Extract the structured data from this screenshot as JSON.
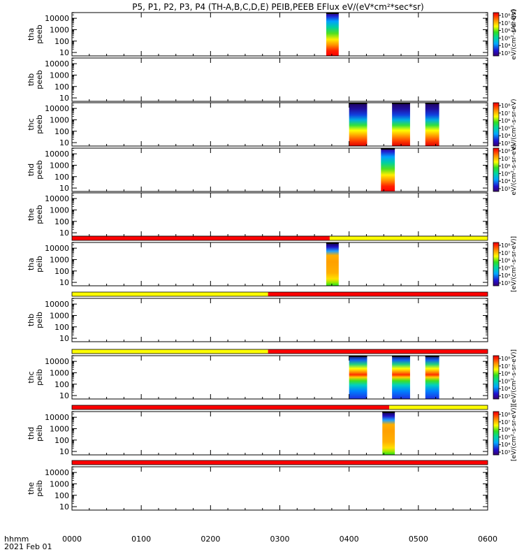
{
  "chart_data": {
    "type": "heatmap",
    "title": "P5, P1, P2, P3, P4 (TH-A,B,C,D,E) PEIB,PEEB EFlux eV/(eV*cm²*sec*sr)",
    "x_ticks": [
      "0000",
      "0100",
      "0200",
      "0300",
      "0400",
      "0500",
      "0600"
    ],
    "x_range_hours": [
      0,
      6
    ],
    "x_corner_label": "hhmm",
    "date_label": "2021 Feb 01",
    "y_ticks": [
      "10",
      "100",
      "1000",
      "10000"
    ],
    "y_scale": "log",
    "colorbar_ticks": [
      "10³",
      "10⁴",
      "10⁵",
      "10⁶",
      "10⁷",
      "10⁸"
    ],
    "colorbar_label_electrons": "eV/(cm²-s-sr-eV)",
    "colorbar_label_ions": "[eV/(cm²-s-sr-eV)]",
    "colorbar_side_text": "(All Qs)",
    "panels": [
      {
        "label1": "tha",
        "label2": "peeb",
        "colorbar": true,
        "segments": [
          [
            3.67,
            3.85
          ]
        ],
        "style": "e_tall",
        "mode_bar": null
      },
      {
        "label1": "thb",
        "label2": "peeb",
        "colorbar": false,
        "segments": [],
        "style": "",
        "mode_bar": null
      },
      {
        "label1": "thc",
        "label2": "peeb",
        "colorbar": true,
        "segments": [
          [
            4.0,
            4.26
          ],
          [
            4.62,
            4.88
          ],
          [
            5.1,
            5.3
          ]
        ],
        "style": "e_mid",
        "mode_bar": null
      },
      {
        "label1": "thd",
        "label2": "peeb",
        "colorbar": true,
        "segments": [
          [
            4.46,
            4.66
          ]
        ],
        "style": "e_tall",
        "mode_bar": null
      },
      {
        "label1": "the",
        "label2": "peeb",
        "colorbar": false,
        "segments": [],
        "style": "",
        "mode_bar": null
      },
      {
        "label1": "tha",
        "label2": "peib",
        "colorbar": true,
        "segments": [
          [
            3.67,
            3.85
          ]
        ],
        "style": "i_fill",
        "mode_bar": [
          [
            "#ff0000",
            0,
            3.72
          ],
          [
            "#ffff00",
            3.72,
            6
          ]
        ]
      },
      {
        "label1": "thb",
        "label2": "peib",
        "colorbar": false,
        "segments": [],
        "style": "",
        "mode_bar": [
          [
            "#ffff00",
            0,
            2.83
          ],
          [
            "#ff0000",
            2.83,
            6
          ]
        ]
      },
      {
        "label1": "thc",
        "label2": "peib",
        "colorbar": true,
        "segments": [
          [
            4.0,
            4.26
          ],
          [
            4.62,
            4.88
          ],
          [
            5.1,
            5.3
          ]
        ],
        "style": "i_band",
        "mode_bar": [
          [
            "#ffff00",
            0,
            2.83
          ],
          [
            "#ff0000",
            2.83,
            6
          ]
        ]
      },
      {
        "label1": "thd",
        "label2": "peib",
        "colorbar": true,
        "segments": [
          [
            4.48,
            4.66
          ]
        ],
        "style": "i_fill",
        "mode_bar": [
          [
            "#ff0000",
            0,
            4.58
          ],
          [
            "#ffff00",
            4.58,
            6
          ]
        ]
      },
      {
        "label1": "the",
        "label2": "peib",
        "colorbar": false,
        "segments": [],
        "style": "",
        "mode_bar": [
          [
            "#ff0000",
            0,
            6
          ]
        ]
      }
    ]
  }
}
